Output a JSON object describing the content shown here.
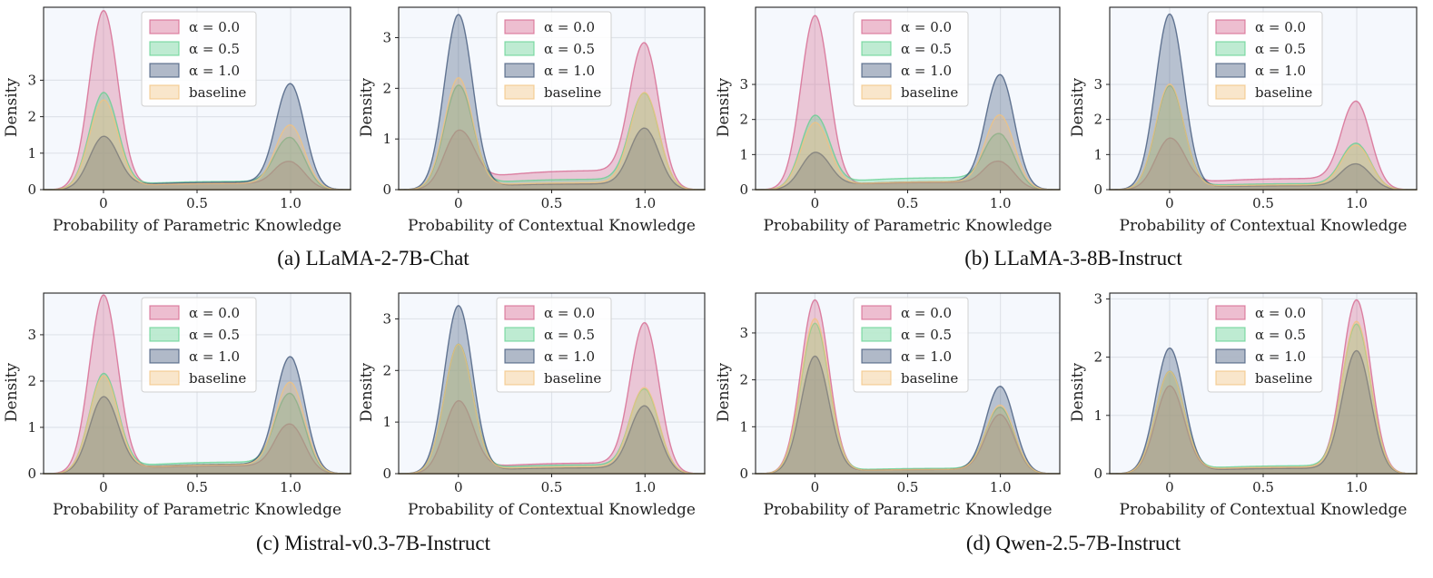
{
  "legend": {
    "items": [
      {
        "label": "α = 0.0",
        "color": "#d4608a"
      },
      {
        "label": "α = 0.5",
        "color": "#5fd08e"
      },
      {
        "label": "α = 1.0",
        "color": "#3b5275"
      },
      {
        "label": "baseline",
        "color": "#f3c27d"
      }
    ]
  },
  "captions": [
    {
      "text": "(a) LLaMA-2-7B-Chat"
    },
    {
      "text": "(b) LLaMA-3-8B-Instruct"
    },
    {
      "text": "(c) Mistral-v0.3-7B-Instruct"
    },
    {
      "text": "(d) Qwen-2.5-7B-Instruct"
    }
  ],
  "chart_data": [
    {
      "type": "area",
      "group": "(a) LLaMA-2-7B-Chat",
      "xlabel": "Probability of Parametric Knowledge",
      "ylabel": "Density",
      "xlim": [
        -0.32,
        1.32
      ],
      "ylim": [
        0,
        5.0
      ],
      "xticks": [
        "0",
        "0.5",
        "1.0"
      ],
      "yticks": [
        "0",
        "1",
        "2",
        "3"
      ],
      "series": [
        {
          "name": "α = 0.0",
          "peak_at_0": 4.9,
          "mid_at_0_5": 0.15,
          "peak_at_1": 0.75
        },
        {
          "name": "α = 0.5",
          "peak_at_0": 2.65,
          "mid_at_0_5": 0.2,
          "peak_at_1": 1.4
        },
        {
          "name": "α = 1.0",
          "peak_at_0": 1.45,
          "mid_at_0_5": 0.18,
          "peak_at_1": 2.88
        },
        {
          "name": "baseline",
          "peak_at_0": 2.45,
          "mid_at_0_5": 0.15,
          "peak_at_1": 1.75
        }
      ]
    },
    {
      "type": "area",
      "group": "(a) LLaMA-2-7B-Chat",
      "xlabel": "Probability of Contextual Knowledge",
      "ylabel": "Density",
      "xlim": [
        -0.32,
        1.32
      ],
      "ylim": [
        0,
        3.6
      ],
      "xticks": [
        "0",
        "0.5",
        "1.0"
      ],
      "yticks": [
        "0",
        "1",
        "2",
        "3"
      ],
      "series": [
        {
          "name": "α = 0.0",
          "peak_at_0": 1.15,
          "mid_at_0_5": 0.33,
          "peak_at_1": 2.85
        },
        {
          "name": "α = 0.5",
          "peak_at_0": 2.05,
          "mid_at_0_5": 0.18,
          "peak_at_1": 1.88
        },
        {
          "name": "α = 1.0",
          "peak_at_0": 3.45,
          "mid_at_0_5": 0.1,
          "peak_at_1": 1.2
        },
        {
          "name": "baseline",
          "peak_at_0": 2.2,
          "mid_at_0_5": 0.12,
          "peak_at_1": 1.9
        }
      ]
    },
    {
      "type": "area",
      "group": "(b) LLaMA-3-8B-Instruct",
      "xlabel": "Probability of Parametric Knowledge",
      "ylabel": "Density",
      "xlim": [
        -0.32,
        1.32
      ],
      "ylim": [
        0,
        5.2
      ],
      "xticks": [
        "0",
        "0.5",
        "1.0"
      ],
      "yticks": [
        "0",
        "1",
        "2",
        "3"
      ],
      "series": [
        {
          "name": "α = 0.0",
          "peak_at_0": 4.95,
          "mid_at_0_5": 0.18,
          "peak_at_1": 0.78
        },
        {
          "name": "α = 0.5",
          "peak_at_0": 2.1,
          "mid_at_0_5": 0.3,
          "peak_at_1": 1.55
        },
        {
          "name": "α = 1.0",
          "peak_at_0": 1.05,
          "mid_at_0_5": 0.2,
          "peak_at_1": 3.25
        },
        {
          "name": "baseline",
          "peak_at_0": 1.9,
          "mid_at_0_5": 0.2,
          "peak_at_1": 2.1
        }
      ]
    },
    {
      "type": "area",
      "group": "(b) LLaMA-3-8B-Instruct",
      "xlabel": "Probability of Contextual Knowledge",
      "ylabel": "Density",
      "xlim": [
        -0.32,
        1.32
      ],
      "ylim": [
        0,
        5.2
      ],
      "xticks": [
        "0",
        "0.5",
        "1.0"
      ],
      "yticks": [
        "0",
        "1",
        "2",
        "3"
      ],
      "series": [
        {
          "name": "α = 0.0",
          "peak_at_0": 1.45,
          "mid_at_0_5": 0.28,
          "peak_at_1": 2.48
        },
        {
          "name": "α = 0.5",
          "peak_at_0": 2.95,
          "mid_at_0_5": 0.15,
          "peak_at_1": 1.3
        },
        {
          "name": "α = 1.0",
          "peak_at_0": 5.0,
          "mid_at_0_5": 0.1,
          "peak_at_1": 0.72
        },
        {
          "name": "baseline",
          "peak_at_0": 3.0,
          "mid_at_0_5": 0.12,
          "peak_at_1": 1.25
        }
      ]
    },
    {
      "type": "area",
      "group": "(c) Mistral-v0.3-7B-Instruct",
      "xlabel": "Probability of Parametric Knowledge",
      "ylabel": "Density",
      "xlim": [
        -0.32,
        1.32
      ],
      "ylim": [
        0,
        3.9
      ],
      "xticks": [
        "0",
        "0.5",
        "1.0"
      ],
      "yticks": [
        "0",
        "1",
        "2",
        "3"
      ],
      "series": [
        {
          "name": "α = 0.0",
          "peak_at_0": 3.85,
          "mid_at_0_5": 0.15,
          "peak_at_1": 1.05
        },
        {
          "name": "α = 0.5",
          "peak_at_0": 2.15,
          "mid_at_0_5": 0.22,
          "peak_at_1": 1.7
        },
        {
          "name": "α = 1.0",
          "peak_at_0": 1.65,
          "mid_at_0_5": 0.18,
          "peak_at_1": 2.5
        },
        {
          "name": "baseline",
          "peak_at_0": 2.1,
          "mid_at_0_5": 0.17,
          "peak_at_1": 1.95
        }
      ]
    },
    {
      "type": "area",
      "group": "(c) Mistral-v0.3-7B-Instruct",
      "xlabel": "Probability of Contextual Knowledge",
      "ylabel": "Density",
      "xlim": [
        -0.32,
        1.32
      ],
      "ylim": [
        0,
        3.5
      ],
      "xticks": [
        "0",
        "0.5",
        "1.0"
      ],
      "yticks": [
        "0",
        "1",
        "2",
        "3"
      ],
      "series": [
        {
          "name": "α = 0.0",
          "peak_at_0": 1.4,
          "mid_at_0_5": 0.18,
          "peak_at_1": 2.9
        },
        {
          "name": "α = 0.5",
          "peak_at_0": 2.5,
          "mid_at_0_5": 0.15,
          "peak_at_1": 1.62
        },
        {
          "name": "α = 1.0",
          "peak_at_0": 3.25,
          "mid_at_0_5": 0.1,
          "peak_at_1": 1.3
        },
        {
          "name": "baseline",
          "peak_at_0": 2.5,
          "mid_at_0_5": 0.12,
          "peak_at_1": 1.65
        }
      ]
    },
    {
      "type": "area",
      "group": "(d) Qwen-2.5-7B-Instruct",
      "xlabel": "Probability of Parametric Knowledge",
      "ylabel": "Density",
      "xlim": [
        -0.32,
        1.32
      ],
      "ylim": [
        0,
        3.85
      ],
      "xticks": [
        "0",
        "0.5",
        "1.0"
      ],
      "yticks": [
        "0",
        "1",
        "2",
        "3"
      ],
      "series": [
        {
          "name": "α = 0.0",
          "peak_at_0": 3.7,
          "mid_at_0_5": 0.08,
          "peak_at_1": 1.25
        },
        {
          "name": "α = 0.5",
          "peak_at_0": 3.2,
          "mid_at_0_5": 0.1,
          "peak_at_1": 1.4
        },
        {
          "name": "α = 1.0",
          "peak_at_0": 2.5,
          "mid_at_0_5": 0.08,
          "peak_at_1": 1.85
        },
        {
          "name": "baseline",
          "peak_at_0": 3.3,
          "mid_at_0_5": 0.08,
          "peak_at_1": 1.45
        }
      ]
    },
    {
      "type": "area",
      "group": "(d) Qwen-2.5-7B-Instruct",
      "xlabel": "Probability of Contextual Knowledge",
      "ylabel": "Density",
      "xlim": [
        -0.32,
        1.32
      ],
      "ylim": [
        0,
        3.1
      ],
      "xticks": [
        "0",
        "0.5",
        "1.0"
      ],
      "yticks": [
        "0",
        "1",
        "2",
        "3"
      ],
      "series": [
        {
          "name": "α = 0.0",
          "peak_at_0": 1.5,
          "mid_at_0_5": 0.1,
          "peak_at_1": 2.97
        },
        {
          "name": "α = 0.5",
          "peak_at_0": 1.75,
          "mid_at_0_5": 0.12,
          "peak_at_1": 2.55
        },
        {
          "name": "α = 1.0",
          "peak_at_0": 2.15,
          "mid_at_0_5": 0.08,
          "peak_at_1": 2.1
        },
        {
          "name": "baseline",
          "peak_at_0": 1.75,
          "mid_at_0_5": 0.1,
          "peak_at_1": 2.6
        }
      ]
    }
  ]
}
